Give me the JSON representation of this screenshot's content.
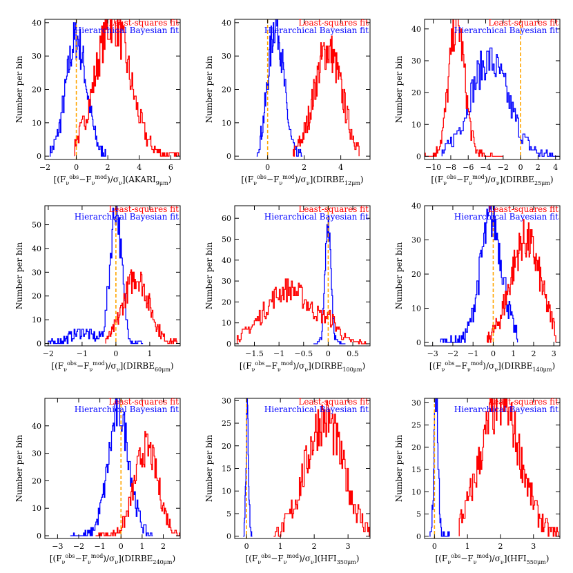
{
  "colors": {
    "hb": "#0000ff",
    "ls": "#ff0000",
    "zero": "#ffa500"
  },
  "chart_data": [
    {
      "type": "histogram",
      "id": "akari9",
      "legend": [
        "Least-squares fit",
        "Hierarchical Bayesian fit"
      ],
      "ylabel": "Number per bin",
      "xlabel": {
        "pre": "[(F",
        "sup1": "obs",
        "mid1": "−F",
        "sup2": "mod",
        "mid2": ")/σ",
        "post": "](AKARI",
        "band": "9μm",
        "end": ")"
      },
      "xlim": [
        -2,
        6.6
      ],
      "ylim": [
        -1,
        41
      ],
      "xticks": [
        -2,
        0,
        2,
        4,
        6
      ],
      "xtick_labels": [
        "−2",
        "0",
        "2",
        "4",
        "6"
      ],
      "yticks": [
        0,
        10,
        20,
        30,
        40
      ],
      "ytick_labels": [
        "0",
        "10",
        "20",
        "30",
        "40"
      ],
      "series": [
        {
          "role": "hb",
          "center": 0,
          "width": 0.65,
          "peak": 35,
          "range": [
            -1.7,
            1.9
          ],
          "bins": 90
        },
        {
          "role": "ls",
          "center": 2.3,
          "width": 1.1,
          "peak": 40,
          "range": [
            -0.1,
            6.5
          ],
          "bins": 120
        }
      ],
      "zero_line": 0
    },
    {
      "type": "histogram",
      "id": "dirbe12",
      "legend": [
        "Least-squares fit",
        "Hierarchical Bayesian fit"
      ],
      "ylabel": "Number per bin",
      "xlabel": {
        "pre": "[(F",
        "sup1": "obs",
        "mid1": "−F",
        "sup2": "mod",
        "mid2": ")/σ",
        "post": "](DIRBE",
        "band": "12μm",
        "end": ")"
      },
      "xlim": [
        -1.8,
        5.6
      ],
      "ylim": [
        -1,
        41
      ],
      "xticks": [
        0,
        2,
        4
      ],
      "xtick_labels": [
        "0",
        "2",
        "4"
      ],
      "yticks": [
        0,
        10,
        20,
        30,
        40
      ],
      "ytick_labels": [
        "0",
        "10",
        "20",
        "30",
        "40"
      ],
      "series": [
        {
          "role": "hb",
          "center": 0.45,
          "width": 0.42,
          "peak": 40,
          "range": [
            -0.6,
            1.9
          ],
          "bins": 80
        },
        {
          "role": "ls",
          "center": 3.3,
          "width": 0.75,
          "peak": 32,
          "range": [
            1.4,
            5.0
          ],
          "bins": 110
        }
      ],
      "zero_line": 0
    },
    {
      "type": "histogram",
      "id": "dirbe25",
      "legend": [
        "Least-squares fit",
        "Hierarchical Bayesian fit"
      ],
      "ylabel": "Number per bin",
      "xlabel": {
        "pre": "[(F",
        "sup1": "obs",
        "mid1": "−F",
        "sup2": "mod",
        "mid2": ")/σ",
        "post": "](DIRBE",
        "band": "25μm",
        "end": ")"
      },
      "xlim": [
        -11,
        4.5
      ],
      "ylim": [
        -1,
        43
      ],
      "xticks": [
        -10,
        -8,
        -6,
        -4,
        -2,
        0,
        2,
        4
      ],
      "xtick_labels": [
        "−10",
        "−8",
        "−6",
        "−4",
        "−2",
        "0",
        "2",
        "4"
      ],
      "yticks": [
        0,
        10,
        20,
        30,
        40
      ],
      "ytick_labels": [
        "0",
        "10",
        "20",
        "30",
        "40"
      ],
      "series": [
        {
          "role": "hb",
          "center": -3.6,
          "width": 2.2,
          "peak": 30,
          "range": [
            -9,
            4.4
          ],
          "bins": 110
        },
        {
          "role": "ls",
          "center": -7.3,
          "width": 0.9,
          "peak": 42,
          "range": [
            -11,
            -2
          ],
          "bins": 100
        }
      ],
      "zero_line": 0
    },
    {
      "type": "histogram",
      "id": "dirbe60",
      "legend": [
        "Least-squares fit",
        "Hierarchical Bayesian fit"
      ],
      "ylabel": "Number per bin",
      "xlabel": {
        "pre": "[(F",
        "sup1": "obs",
        "mid1": "−F",
        "sup2": "mod",
        "mid2": ")/σ",
        "post": "](DIRBE",
        "band": "60μm",
        "end": ")"
      },
      "xlim": [
        -2.1,
        1.9
      ],
      "ylim": [
        -1,
        58
      ],
      "xticks": [
        -2,
        -1,
        0,
        1
      ],
      "xtick_labels": [
        "−2",
        "−1",
        "0",
        "1"
      ],
      "yticks": [
        0,
        10,
        20,
        30,
        40,
        50
      ],
      "ytick_labels": [
        "0",
        "10",
        "20",
        "30",
        "40",
        "50"
      ],
      "series": [
        {
          "role": "hb",
          "center": 0.0,
          "width": 0.17,
          "peak": 57,
          "range": [
            -2.0,
            0.8
          ],
          "bins": 110,
          "tail": [
            -1.0,
            0.35,
            5
          ]
        },
        {
          "role": "ls",
          "center": 0.6,
          "width": 0.38,
          "peak": 28,
          "range": [
            -0.3,
            1.8
          ],
          "bins": 110
        }
      ],
      "zero_line": 0
    },
    {
      "type": "histogram",
      "id": "dirbe100",
      "legend": [
        "Least-squares fit",
        "Hierarchical Bayesian fit"
      ],
      "ylabel": "Number per bin",
      "xlabel": {
        "pre": "[(F",
        "sup1": "obs",
        "mid1": "−F",
        "sup2": "mod",
        "mid2": ")/σ",
        "post": "](DIRBE",
        "band": "100μm",
        "end": ")"
      },
      "xlim": [
        -1.9,
        0.85
      ],
      "ylim": [
        -1,
        66
      ],
      "xticks": [
        -1.5,
        -1.0,
        -0.5,
        0,
        0.5
      ],
      "xtick_labels": [
        "−1.5",
        "−1",
        "−0.5",
        "0",
        "0.5"
      ],
      "yticks": [
        0,
        10,
        20,
        30,
        40,
        50,
        60
      ],
      "ytick_labels": [
        "0",
        "10",
        "20",
        "30",
        "40",
        "50",
        "60"
      ],
      "series": [
        {
          "role": "hb",
          "center": 0.0,
          "width": 0.06,
          "peak": 60,
          "range": [
            -0.3,
            0.35
          ],
          "bins": 50
        },
        {
          "role": "ls",
          "center": -0.8,
          "width": 0.5,
          "peak": 26,
          "range": [
            -1.85,
            0.8
          ],
          "bins": 130,
          "bump": [
            0.05,
            0.15,
            6
          ]
        }
      ],
      "zero_line": 0
    },
    {
      "type": "histogram",
      "id": "dirbe140",
      "legend": [
        "Least-squares fit",
        "Hierarchical Bayesian fit"
      ],
      "ylabel": "Number per bin",
      "xlabel": {
        "pre": "[(F",
        "sup1": "obs",
        "mid1": "−F",
        "sup2": "mod",
        "mid2": ")/σ",
        "post": "](DIRBE",
        "band": "140μm",
        "end": ")"
      },
      "xlim": [
        -3.4,
        3.3
      ],
      "ylim": [
        -1,
        40
      ],
      "xticks": [
        -3,
        -2,
        -1,
        0,
        1,
        2,
        3
      ],
      "xtick_labels": [
        "−3",
        "−2",
        "−1",
        "0",
        "1",
        "2",
        "3"
      ],
      "yticks": [
        0,
        10,
        20,
        30,
        40
      ],
      "ytick_labels": [
        "0",
        "10",
        "20",
        "30",
        "40"
      ],
      "series": [
        {
          "role": "hb",
          "center": -0.1,
          "width": 0.55,
          "peak": 36,
          "range": [
            -2.6,
            1.2
          ],
          "bins": 100
        },
        {
          "role": "ls",
          "center": 1.6,
          "width": 0.75,
          "peak": 30,
          "range": [
            -0.3,
            3.1
          ],
          "bins": 110
        }
      ],
      "zero_line": 0
    },
    {
      "type": "histogram",
      "id": "dirbe240",
      "legend": [
        "Least-squares fit",
        "Hierarchical Bayesian fit"
      ],
      "ylabel": "Number per bin",
      "xlabel": {
        "pre": "[(F",
        "sup1": "obs",
        "mid1": "−F",
        "sup2": "mod",
        "mid2": ")/σ",
        "post": "](DIRBE",
        "band": "240μm",
        "end": ")"
      },
      "xlim": [
        -3.6,
        2.8
      ],
      "ylim": [
        -1,
        50
      ],
      "xticks": [
        -3,
        -2,
        -1,
        0,
        1,
        2
      ],
      "xtick_labels": [
        "−3",
        "−2",
        "−1",
        "0",
        "1",
        "2"
      ],
      "yticks": [
        0,
        10,
        20,
        30,
        40
      ],
      "ytick_labels": [
        "0",
        "10",
        "20",
        "30",
        "40"
      ],
      "series": [
        {
          "role": "hb",
          "center": -0.1,
          "width": 0.5,
          "peak": 45,
          "range": [
            -2.4,
            1.5
          ],
          "bins": 100
        },
        {
          "role": "ls",
          "center": 1.2,
          "width": 0.55,
          "peak": 32,
          "range": [
            -1.2,
            2.8
          ],
          "bins": 110
        }
      ],
      "zero_line": 0
    },
    {
      "type": "histogram",
      "id": "hfi350",
      "legend": [
        "Least-squares fit",
        "Hierarchical Bayesian fit"
      ],
      "ylabel": "Number per bin",
      "xlabel": {
        "pre": "[(F",
        "sup1": "obs",
        "mid1": "−F",
        "sup2": "mod",
        "mid2": ")/σ",
        "post": "](HFI",
        "band": "350μm",
        "end": ")"
      },
      "xlim": [
        -0.35,
        3.65
      ],
      "ylim": [
        -0.5,
        30.5
      ],
      "xticks": [
        0,
        1,
        2,
        3
      ],
      "xtick_labels": [
        "0",
        "1",
        "2",
        "3"
      ],
      "yticks": [
        0,
        5,
        10,
        15,
        20,
        25,
        30
      ],
      "ytick_labels": [
        "0",
        "5",
        "10",
        "15",
        "20",
        "25",
        "30"
      ],
      "series": [
        {
          "role": "hb",
          "center": 0.02,
          "width": 0.04,
          "peak": 27,
          "range": [
            -0.1,
            0.17
          ],
          "bins": 30
        },
        {
          "role": "ls",
          "center": 2.3,
          "width": 0.55,
          "peak": 26,
          "range": [
            0.8,
            3.65
          ],
          "bins": 120
        }
      ],
      "zero_line": 0
    },
    {
      "type": "histogram",
      "id": "hfi550",
      "legend": [
        "Least-squares fit",
        "Hierarchical Bayesian fit"
      ],
      "ylabel": "Number per bin",
      "xlabel": {
        "pre": "[(F",
        "sup1": "obs",
        "mid1": "−F",
        "sup2": "mod",
        "mid2": ")/σ",
        "post": "](HFI",
        "band": "550μm",
        "end": ")"
      },
      "xlim": [
        -0.3,
        3.8
      ],
      "ylim": [
        -0.5,
        31
      ],
      "xticks": [
        0,
        1,
        2,
        3
      ],
      "xtick_labels": [
        "0",
        "1",
        "2",
        "3"
      ],
      "yticks": [
        0,
        5,
        10,
        15,
        20,
        25,
        30
      ],
      "ytick_labels": [
        "0",
        "5",
        "10",
        "15",
        "20",
        "25",
        "30"
      ],
      "series": [
        {
          "role": "hb",
          "center": 0.05,
          "width": 0.06,
          "peak": 31,
          "range": [
            -0.15,
            0.45
          ],
          "bins": 40
        },
        {
          "role": "ls",
          "center": 2.0,
          "width": 0.6,
          "peak": 30,
          "range": [
            0.75,
            3.8
          ],
          "bins": 120
        }
      ],
      "zero_line": 0
    }
  ]
}
